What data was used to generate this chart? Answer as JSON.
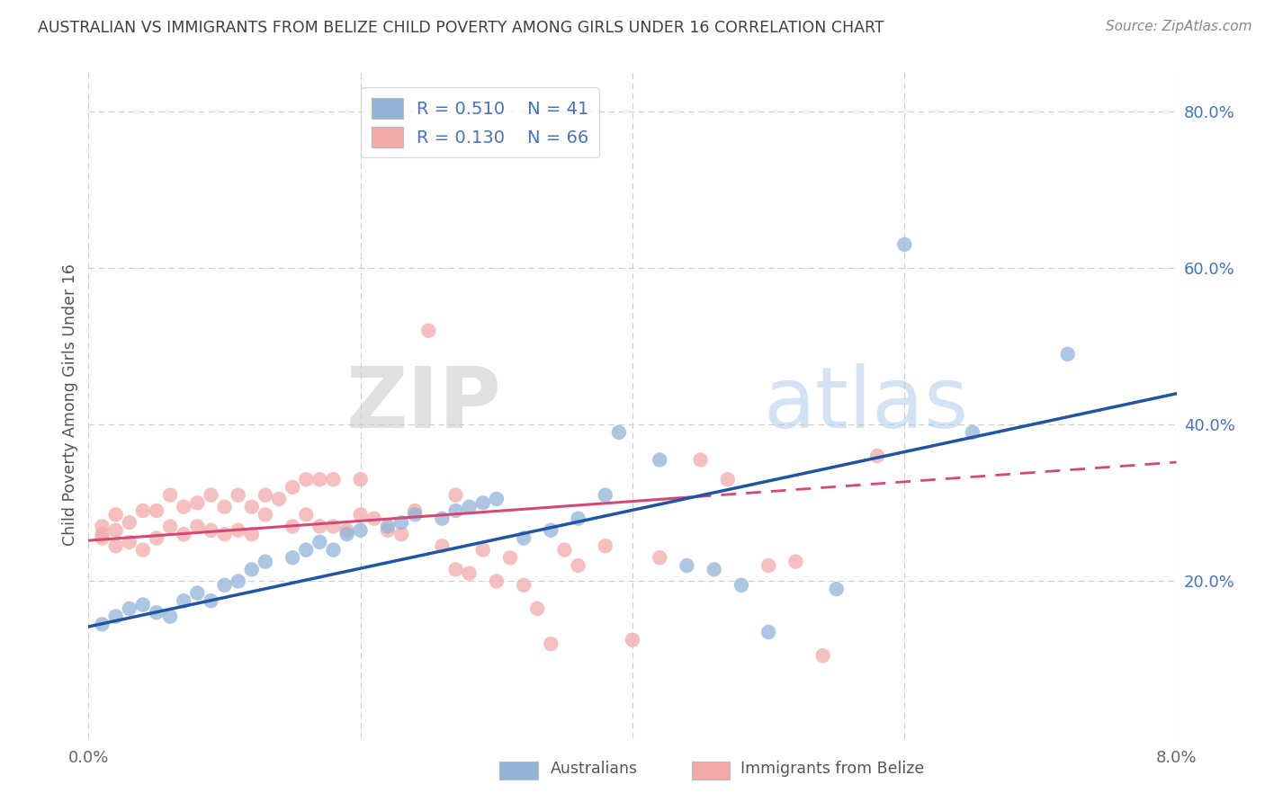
{
  "title": "AUSTRALIAN VS IMMIGRANTS FROM BELIZE CHILD POVERTY AMONG GIRLS UNDER 16 CORRELATION CHART",
  "source": "Source: ZipAtlas.com",
  "ylabel": "Child Poverty Among Girls Under 16",
  "xlim": [
    0.0,
    0.08
  ],
  "ylim": [
    0.0,
    0.85
  ],
  "yticks": [
    0.2,
    0.4,
    0.6,
    0.8
  ],
  "ytick_labels": [
    "20.0%",
    "40.0%",
    "60.0%",
    "80.0%"
  ],
  "xticks": [
    0.0,
    0.02,
    0.04,
    0.06,
    0.08
  ],
  "xtick_labels": [
    "0.0%",
    "",
    "",
    "",
    "8.0%"
  ],
  "blue_color": "#92b4d7",
  "pink_color": "#f4aaaa",
  "blue_line_color": "#2155a3",
  "pink_line_color": "#d44876",
  "R_blue": 0.51,
  "N_blue": 41,
  "R_pink": 0.13,
  "N_pink": 66,
  "watermark_zip": "ZIP",
  "watermark_atlas": "atlas",
  "background_color": "#ffffff",
  "grid_color": "#cccccc",
  "title_color": "#404040",
  "axis_label_color": "#555555",
  "right_yaxis_color": "#4472c4",
  "legend_label_color": "#4472c4",
  "blue_line_intercept": 0.142,
  "blue_line_slope": 3.72,
  "pink_line_intercept": 0.252,
  "pink_line_slope": 1.25,
  "blue_x": [
    0.001,
    0.002,
    0.003,
    0.004,
    0.005,
    0.006,
    0.007,
    0.008,
    0.009,
    0.01,
    0.011,
    0.012,
    0.013,
    0.015,
    0.016,
    0.017,
    0.018,
    0.019,
    0.02,
    0.022,
    0.023,
    0.024,
    0.026,
    0.027,
    0.028,
    0.029,
    0.03,
    0.032,
    0.034,
    0.036,
    0.038,
    0.039,
    0.042,
    0.044,
    0.046,
    0.048,
    0.05,
    0.055,
    0.06,
    0.065,
    0.072
  ],
  "blue_y": [
    0.145,
    0.155,
    0.165,
    0.17,
    0.16,
    0.155,
    0.175,
    0.185,
    0.175,
    0.195,
    0.2,
    0.215,
    0.225,
    0.23,
    0.24,
    0.25,
    0.24,
    0.26,
    0.265,
    0.27,
    0.275,
    0.285,
    0.28,
    0.29,
    0.295,
    0.3,
    0.305,
    0.255,
    0.265,
    0.28,
    0.31,
    0.39,
    0.355,
    0.22,
    0.215,
    0.195,
    0.135,
    0.19,
    0.63,
    0.39,
    0.49
  ],
  "pink_x": [
    0.001,
    0.001,
    0.001,
    0.002,
    0.002,
    0.002,
    0.003,
    0.003,
    0.004,
    0.004,
    0.005,
    0.005,
    0.006,
    0.006,
    0.007,
    0.007,
    0.008,
    0.008,
    0.009,
    0.009,
    0.01,
    0.01,
    0.011,
    0.011,
    0.012,
    0.012,
    0.013,
    0.013,
    0.014,
    0.015,
    0.015,
    0.016,
    0.016,
    0.017,
    0.017,
    0.018,
    0.018,
    0.019,
    0.02,
    0.02,
    0.021,
    0.022,
    0.023,
    0.024,
    0.025,
    0.026,
    0.027,
    0.027,
    0.028,
    0.029,
    0.03,
    0.031,
    0.032,
    0.033,
    0.034,
    0.035,
    0.036,
    0.038,
    0.04,
    0.042,
    0.045,
    0.047,
    0.05,
    0.052,
    0.054,
    0.058
  ],
  "pink_y": [
    0.255,
    0.26,
    0.27,
    0.245,
    0.265,
    0.285,
    0.25,
    0.275,
    0.24,
    0.29,
    0.255,
    0.29,
    0.27,
    0.31,
    0.26,
    0.295,
    0.27,
    0.3,
    0.265,
    0.31,
    0.26,
    0.295,
    0.265,
    0.31,
    0.26,
    0.295,
    0.285,
    0.31,
    0.305,
    0.27,
    0.32,
    0.285,
    0.33,
    0.27,
    0.33,
    0.27,
    0.33,
    0.265,
    0.285,
    0.33,
    0.28,
    0.265,
    0.26,
    0.29,
    0.52,
    0.245,
    0.215,
    0.31,
    0.21,
    0.24,
    0.2,
    0.23,
    0.195,
    0.165,
    0.12,
    0.24,
    0.22,
    0.245,
    0.125,
    0.23,
    0.355,
    0.33,
    0.22,
    0.225,
    0.105,
    0.36
  ]
}
